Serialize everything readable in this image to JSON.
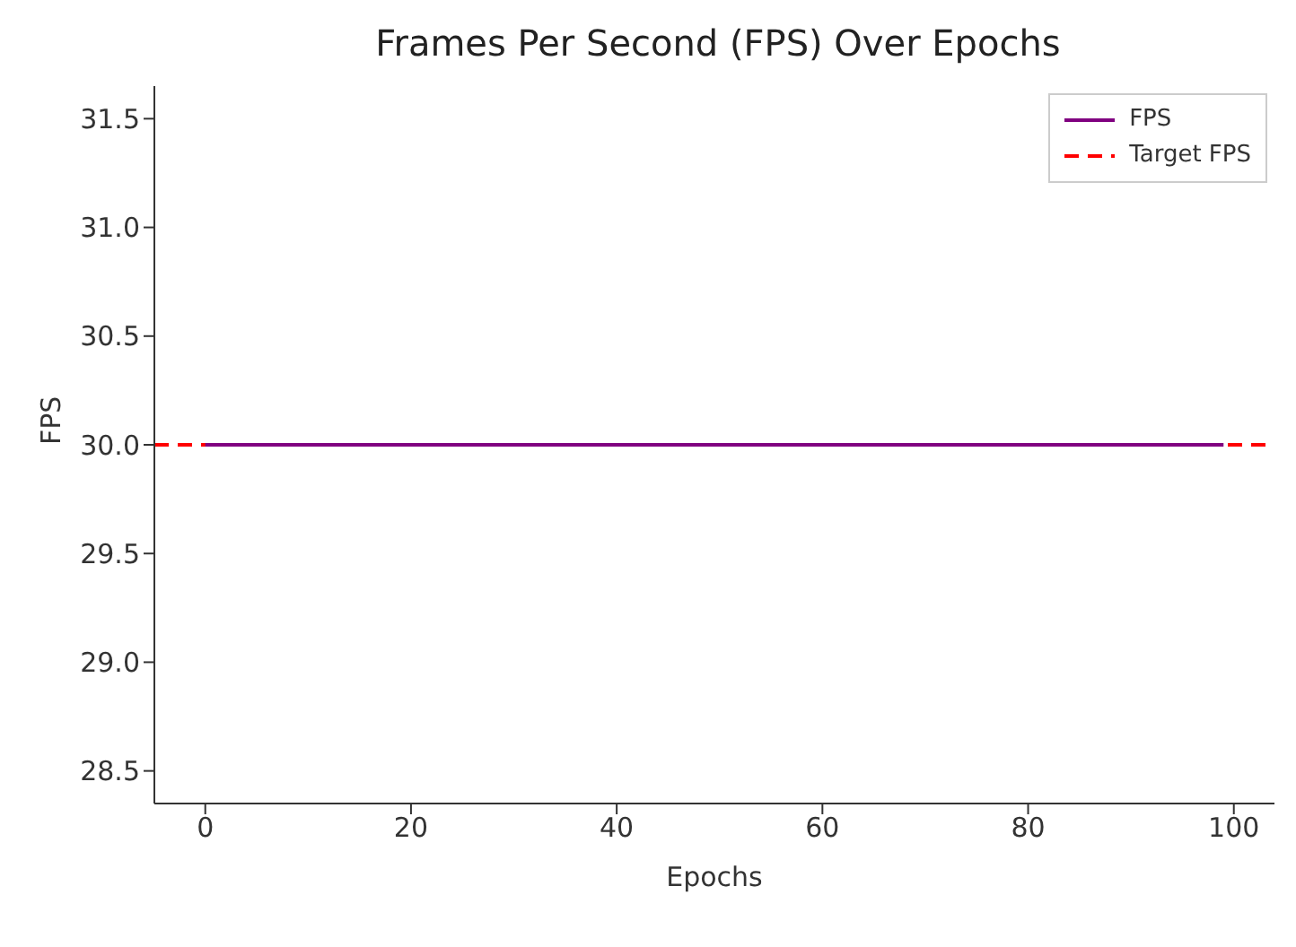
{
  "chart_data": {
    "type": "line",
    "title": "Frames Per Second (FPS) Over Epochs",
    "xlabel": "Epochs",
    "ylabel": "FPS",
    "x": [
      0,
      99
    ],
    "series": [
      {
        "name": "FPS",
        "color": "#800080",
        "values": [
          30,
          30
        ]
      }
    ],
    "ref_lines": [
      {
        "axis": "y",
        "value": 30,
        "label": "Target FPS",
        "color": "#ff0000",
        "line_style": "dashed"
      }
    ],
    "xlim": [
      -4.95,
      103.95
    ],
    "xticks": [
      0,
      20,
      40,
      60,
      80,
      100
    ],
    "ylim": [
      28.35,
      31.65
    ],
    "yticks": [
      28.5,
      {
        "value": 29,
        "label": "29.0"
      },
      29.5,
      {
        "value": 30,
        "label": "30.0"
      },
      30.5,
      {
        "value": 31,
        "label": "31.0"
      },
      31.5
    ],
    "grid": false,
    "legend": "top right",
    "marker": "none",
    "line_style": "solid"
  }
}
